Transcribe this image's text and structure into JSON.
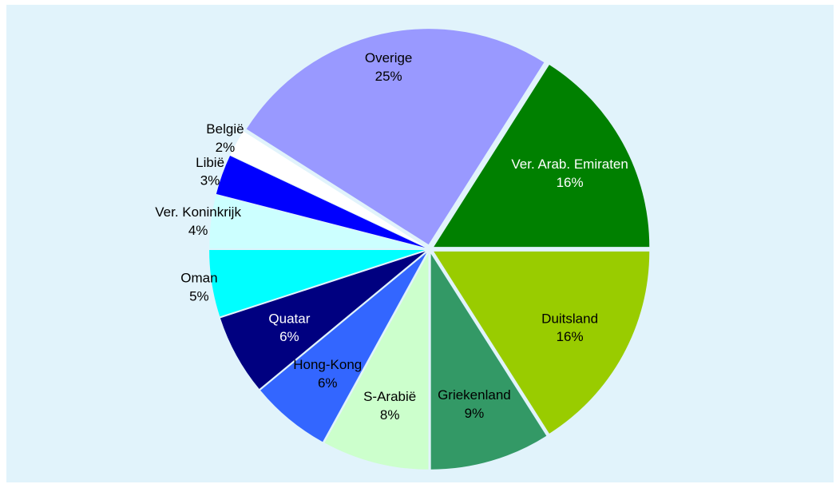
{
  "chart_data": {
    "type": "pie",
    "categories": [
      "Duitsland",
      "Griekenland",
      "S-Arabië",
      "Hong-Kong",
      "Quatar",
      "Oman",
      "Ver. Koninkrijk",
      "Libië",
      "België",
      "Overige",
      "Ver. Arab. Emiraten"
    ],
    "values": [
      16,
      9,
      8,
      6,
      6,
      5,
      4,
      3,
      2,
      25,
      16
    ],
    "value_labels": [
      "16%",
      "9%",
      "8%",
      "6%",
      "6%",
      "5%",
      "4%",
      "3%",
      "2%",
      "25%",
      "16%"
    ],
    "colors": [
      "#99cc00",
      "#339966",
      "#ccffcc",
      "#3366ff",
      "#000080",
      "#00ffff",
      "#ccffff",
      "#0000ff",
      "#ffffff",
      "#9999ff",
      "#008000"
    ]
  }
}
